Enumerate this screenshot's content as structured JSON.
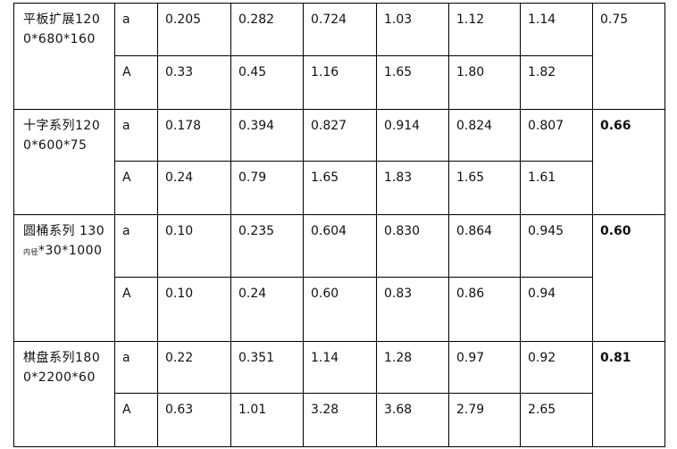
{
  "table": {
    "groups": [
      {
        "label": "平板扩展1200*680*160",
        "rows": [
          {
            "symbol": "a",
            "values": [
              "0.205",
              "0.282",
              "0.724",
              "1.03",
              "1.12",
              "1.14"
            ]
          },
          {
            "symbol": "A",
            "values": [
              "0.33",
              "0.45",
              "1.16",
              "1.65",
              "1.80",
              "1.82"
            ]
          }
        ],
        "total": "0.75"
      },
      {
        "label": "十字系列1200*600*75",
        "rows": [
          {
            "symbol": "a",
            "values": [
              "0.178",
              "0.394",
              "0.827",
              "0.914",
              "0.824",
              "0.807"
            ]
          },
          {
            "symbol": "A",
            "values": [
              "0.24",
              "0.79",
              "1.65",
              "1.83",
              "1.65",
              "1.61"
            ]
          }
        ],
        "total": "0.66"
      },
      {
        "label": "圆桶系列 130",
        "label_sub": "内径",
        "label_rest": "*30*1000",
        "rows": [
          {
            "symbol": "a",
            "values": [
              "0.10",
              "0.235",
              "0.604",
              "0.830",
              "0.864",
              "0.945"
            ]
          },
          {
            "symbol": "A",
            "values": [
              "0.10",
              "0.24",
              "0.60",
              "0.83",
              "0.86",
              "0.94"
            ]
          }
        ],
        "total": "0.60"
      },
      {
        "label": "棋盘系列1800*2200*60",
        "rows": [
          {
            "symbol": "a",
            "values": [
              "0.22",
              "0.351",
              "1.14",
              "1.28",
              "0.97",
              "0.92"
            ]
          },
          {
            "symbol": "A",
            "values": [
              "0.63",
              "1.01",
              "3.28",
              "3.68",
              "2.79",
              "2.65"
            ]
          }
        ],
        "total": "0.81"
      }
    ]
  }
}
